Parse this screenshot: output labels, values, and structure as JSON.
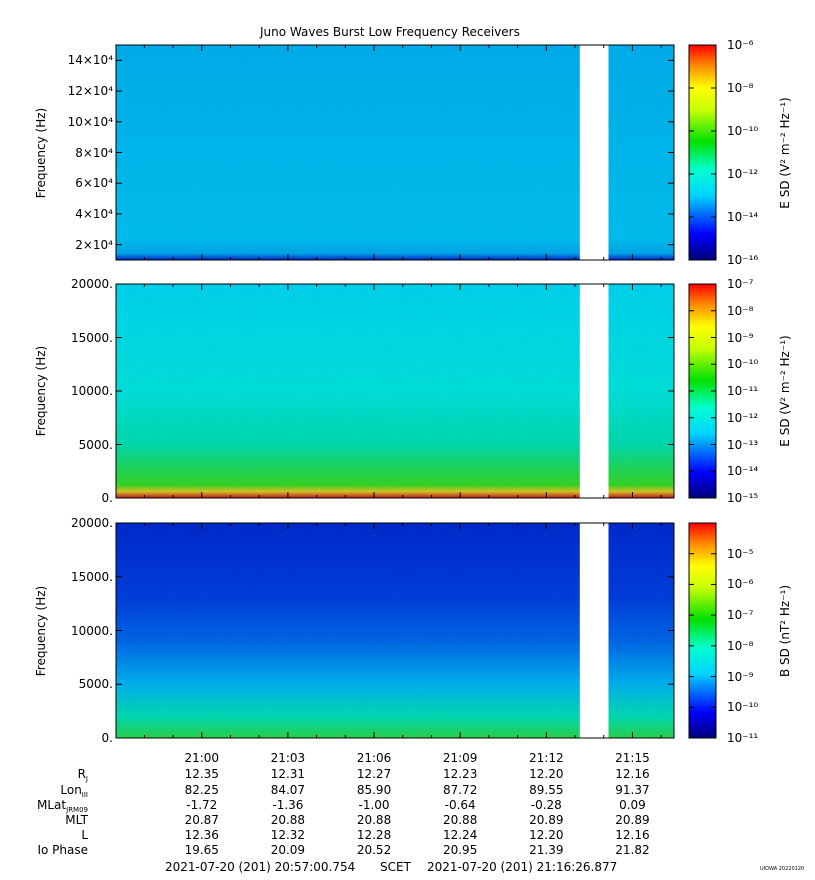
{
  "title": "Juno Waves Burst Low Frequency Receivers",
  "chart_data": [
    {
      "type": "heatmap",
      "panel": "top",
      "ylabel": "Frequency (Hz)",
      "yticks": [
        "2×10⁴",
        "4×10⁴",
        "6×10⁴",
        "8×10⁴",
        "10×10⁴",
        "12×10⁴",
        "14×10⁴"
      ],
      "yticks_values": [
        20000,
        40000,
        60000,
        80000,
        100000,
        120000,
        140000
      ],
      "ylim": [
        10000,
        150000
      ],
      "colorbar_label": "E SD (V² m⁻² Hz⁻¹)",
      "colorbar_ticks": [
        "10⁻⁶",
        "10⁻⁸",
        "10⁻¹⁰",
        "10⁻¹²",
        "10⁻¹⁴",
        "10⁻¹⁶"
      ],
      "colorbar_range": [
        1e-16,
        1e-06
      ],
      "colorbar_scale": "log",
      "data_gap": [
        "21:13:10",
        "21:14:10"
      ]
    },
    {
      "type": "heatmap",
      "panel": "middle",
      "ylabel": "Frequency (Hz)",
      "yticks": [
        "0.",
        "5000.",
        "10000.",
        "15000.",
        "20000."
      ],
      "yticks_values": [
        0,
        5000,
        10000,
        15000,
        20000
      ],
      "ylim": [
        0,
        20000
      ],
      "colorbar_label": "E SD (V² m⁻² Hz⁻¹)",
      "colorbar_ticks": [
        "10⁻⁷",
        "10⁻⁸",
        "10⁻⁹",
        "10⁻¹⁰",
        "10⁻¹¹",
        "10⁻¹²",
        "10⁻¹³",
        "10⁻¹⁴",
        "10⁻¹⁵"
      ],
      "colorbar_range": [
        1e-15,
        1e-07
      ],
      "colorbar_scale": "log",
      "data_gap": [
        "21:13:10",
        "21:14:10"
      ]
    },
    {
      "type": "heatmap",
      "panel": "bottom",
      "ylabel": "Frequency (Hz)",
      "yticks": [
        "0.",
        "5000.",
        "10000.",
        "15000.",
        "20000."
      ],
      "yticks_values": [
        0,
        5000,
        10000,
        15000,
        20000
      ],
      "ylim": [
        0,
        20000
      ],
      "colorbar_label": "B SD (nT² Hz⁻¹)",
      "colorbar_ticks": [
        "10⁻⁵",
        "10⁻⁶",
        "10⁻⁷",
        "10⁻⁸",
        "10⁻⁹",
        "10⁻¹⁰",
        "10⁻¹¹"
      ],
      "colorbar_range": [
        1e-11,
        0.0001
      ],
      "colorbar_scale": "log",
      "data_gap": [
        "21:13:10",
        "21:14:10"
      ]
    }
  ],
  "xaxis": {
    "start": "20:57:00.754",
    "end": "21:16:26.877",
    "tick_labels": [
      "21:00",
      "21:03",
      "21:06",
      "21:09",
      "21:12",
      "21:15"
    ]
  },
  "ephemeris": {
    "labels": {
      "rj": "R",
      "rj_sub": "J",
      "lon": "Lon",
      "lon_sub": "III",
      "mlat": "MLat",
      "mlat_sub": "JRM09",
      "mlt": "MLT",
      "l": "L",
      "io": "Io Phase"
    },
    "rows": [
      [
        "12.35",
        "12.31",
        "12.27",
        "12.23",
        "12.20",
        "12.16"
      ],
      [
        "82.25",
        "84.07",
        "85.90",
        "87.72",
        "89.55",
        "91.37"
      ],
      [
        "-1.72",
        "-1.36",
        "-1.00",
        "-0.64",
        "-0.28",
        "0.09"
      ],
      [
        "20.87",
        "20.88",
        "20.88",
        "20.88",
        "20.89",
        "20.89"
      ],
      [
        "12.36",
        "12.32",
        "12.28",
        "12.24",
        "12.20",
        "12.16"
      ],
      [
        "19.65",
        "20.09",
        "20.52",
        "20.95",
        "21.39",
        "21.82"
      ]
    ]
  },
  "footer": {
    "start_label": "2021-07-20 (201) 20:57:00.754",
    "scet": "SCET",
    "end_label": "2021-07-20 (201) 21:16:26.877",
    "stamp": "UIOWA 20220120"
  }
}
